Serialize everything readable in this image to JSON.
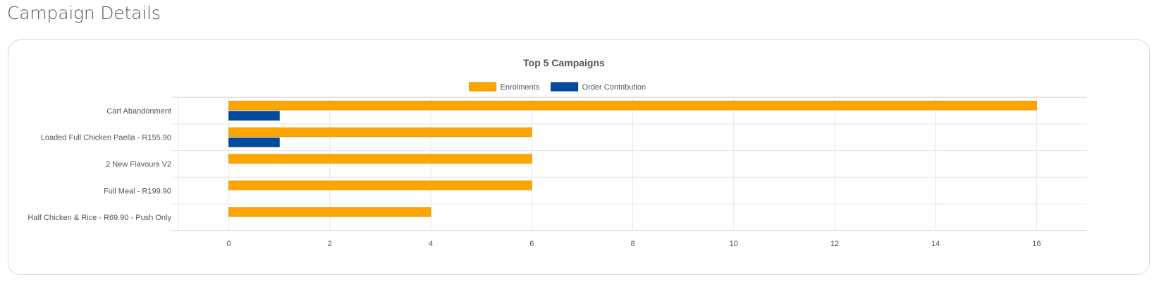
{
  "page": {
    "heading": "Campaign Details"
  },
  "chart_data": {
    "type": "bar",
    "orientation": "horizontal",
    "title": "Top 5 Campaigns",
    "categories": [
      "Cart Abandonment",
      "Loaded Full Chicken Paella - R155.90",
      "2 New Flavours V2",
      "Full Meal - R199.90",
      "Half Chicken & Rice - R69.90 - Push Only"
    ],
    "series": [
      {
        "name": "Enrolments",
        "color": "#ffa500",
        "border_color": "#e69500",
        "values": [
          16,
          6,
          6,
          6,
          4
        ]
      },
      {
        "name": "Order Contribution",
        "color": "#004b9e",
        "border_color": "#003f86",
        "values": [
          1,
          1,
          0,
          0,
          0
        ]
      }
    ],
    "x_ticks": [
      0,
      2,
      4,
      6,
      8,
      10,
      12,
      14,
      16
    ],
    "xlim": [
      -1,
      17
    ],
    "grid": true,
    "legend": "top-center"
  }
}
